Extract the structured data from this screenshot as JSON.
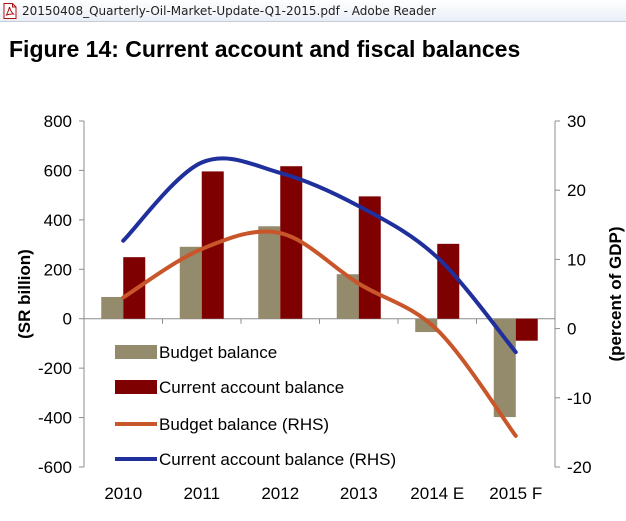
{
  "window": {
    "title": "20150408_Quarterly-Oil-Market-Update-Q1-2015.pdf - Adobe Reader",
    "icon": "pdf-file-icon"
  },
  "figure": {
    "title": "Figure 14: Current account and fiscal balances"
  },
  "colors": {
    "budget_bar": "#948A6C",
    "current_bar": "#7E0000",
    "budget_line": "#C8562A",
    "current_line": "#1F2F9C",
    "axis": "#8C8C8C"
  },
  "chart_data": {
    "type": "bar",
    "categories": [
      "2010",
      "2011",
      "2012",
      "2013",
      "2014 E",
      "2015 F"
    ],
    "series": [
      {
        "name": "Budget balance",
        "type": "bar",
        "axis": "left",
        "values": [
          88,
          291,
          374,
          180,
          -54,
          -398
        ]
      },
      {
        "name": "Current account balance",
        "type": "bar",
        "axis": "left",
        "values": [
          249,
          596,
          617,
          495,
          303,
          -89
        ]
      },
      {
        "name": "Budget balance (RHS)",
        "type": "line",
        "axis": "right",
        "values": [
          4.5,
          11.5,
          13.8,
          6.5,
          -0.2,
          -15.5
        ]
      },
      {
        "name": "Current account balance (RHS)",
        "type": "line",
        "axis": "right",
        "values": [
          12.7,
          24.0,
          22.5,
          17.7,
          10.3,
          -3.4
        ]
      }
    ],
    "ylabel": "(SR billion)",
    "y2label": "(percent of GDP)",
    "ylim": [
      -600,
      800
    ],
    "y2lim": [
      -20,
      30
    ],
    "yticks": [
      "800",
      "600",
      "400",
      "200",
      "0",
      "-200",
      "-400",
      "-600"
    ],
    "y2ticks": [
      "30",
      "20",
      "10",
      "0",
      "-10",
      "-20"
    ],
    "legend_position": "lower-left",
    "grid": false
  }
}
